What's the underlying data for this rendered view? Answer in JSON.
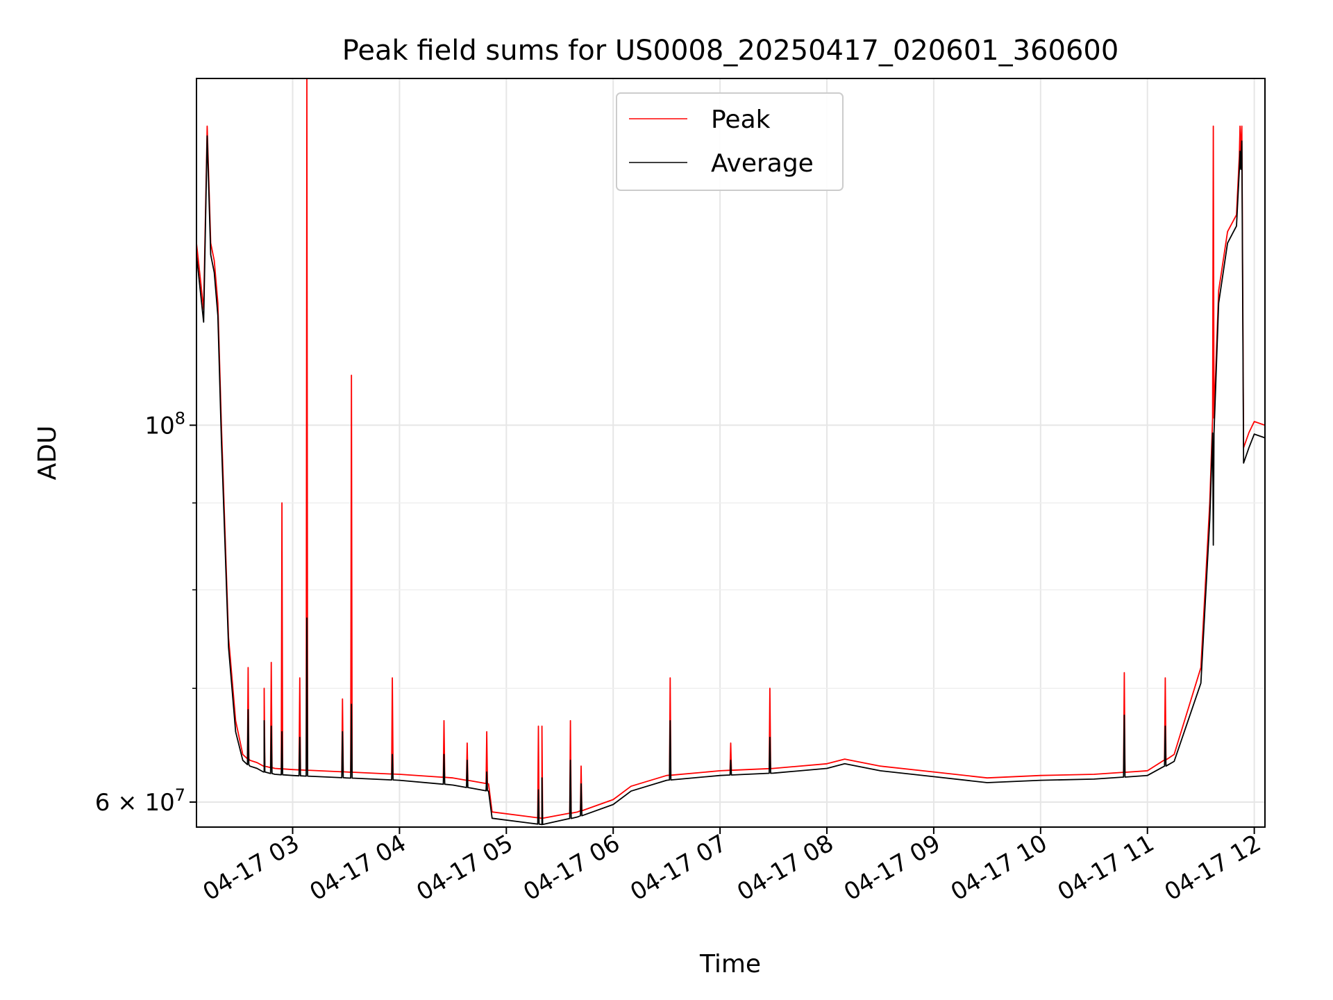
{
  "chart_data": {
    "type": "line",
    "title": "Peak field sums for US0008_20250417_020601_360600",
    "xlabel": "Time",
    "ylabel": "ADU",
    "yscale": "log",
    "grid": true,
    "legend_position": "top-center",
    "xlim": [
      "04-17 02:06",
      "04-17 12:06"
    ],
    "ylim": [
      58000000,
      160000000
    ],
    "x_ticks": [
      "04-17 03",
      "04-17 04",
      "04-17 05",
      "04-17 06",
      "04-17 07",
      "04-17 08",
      "04-17 09",
      "04-17 10",
      "04-17 11",
      "04-17 12"
    ],
    "y_ticks": [
      {
        "value": 60000000,
        "label": "6 × 10^7"
      },
      {
        "value": 100000000,
        "label": "10^8"
      }
    ],
    "x": [
      "04-17 02:06",
      "04-17 02:10",
      "04-17 02:12",
      "04-17 02:14",
      "04-17 02:16",
      "04-17 02:18",
      "04-17 02:20",
      "04-17 02:24",
      "04-17 02:28",
      "04-17 02:32",
      "04-17 02:36",
      "04-17 02:40",
      "04-17 02:44",
      "04-17 02:50",
      "04-17 03:00",
      "04-17 03:30",
      "04-17 04:00",
      "04-17 04:30",
      "04-17 04:50",
      "04-17 04:52",
      "04-17 05:20",
      "04-17 05:40",
      "04-17 06:00",
      "04-17 06:10",
      "04-17 06:30",
      "04-17 07:00",
      "04-17 07:30",
      "04-17 08:00",
      "04-17 08:10",
      "04-17 08:30",
      "04-17 09:00",
      "04-17 09:30",
      "04-17 10:00",
      "04-17 10:30",
      "04-17 11:00",
      "04-17 11:15",
      "04-17 11:30",
      "04-17 11:35",
      "04-17 11:40",
      "04-17 11:45",
      "04-17 11:50",
      "04-17 11:53",
      "04-17 11:54",
      "04-17 11:57",
      "04-17 12:00",
      "04-17 12:06"
    ],
    "series": [
      {
        "name": "Peak",
        "color": "#ff0000",
        "values": [
          128000000,
          117000000,
          150000000,
          128000000,
          125000000,
          118000000,
          100000000,
          75000000,
          67000000,
          64000000,
          63500000,
          63300000,
          63000000,
          62800000,
          62700000,
          62500000,
          62300000,
          62000000,
          61500000,
          59200000,
          58700000,
          59200000,
          60200000,
          61300000,
          62200000,
          62600000,
          62800000,
          63200000,
          63600000,
          63000000,
          62500000,
          62000000,
          62200000,
          62300000,
          62600000,
          64000000,
          72000000,
          90000000,
          120000000,
          130000000,
          133000000,
          150000000,
          97000000,
          99000000,
          100500000,
          100000000
        ]
      },
      {
        "name": "Average",
        "color": "#000000",
        "values": [
          126000000,
          115000000,
          148000000,
          126000000,
          123000000,
          116000000,
          98000000,
          74000000,
          66000000,
          63500000,
          63000000,
          62800000,
          62500000,
          62300000,
          62200000,
          62000000,
          61800000,
          61400000,
          60900000,
          58700000,
          58200000,
          58800000,
          59800000,
          60900000,
          61800000,
          62200000,
          62400000,
          62800000,
          63200000,
          62600000,
          62100000,
          61600000,
          61800000,
          61900000,
          62200000,
          63400000,
          70500000,
          88000000,
          118000000,
          128000000,
          131000000,
          147000000,
          95000000,
          97000000,
          98800000,
          98300000
        ]
      }
    ],
    "spikes": [
      {
        "x": "04-17 02:35",
        "peak": 72000000,
        "average": 68000000
      },
      {
        "x": "04-17 02:44",
        "peak": 70000000,
        "average": 67000000
      },
      {
        "x": "04-17 02:48",
        "peak": 72500000,
        "average": 66500000
      },
      {
        "x": "04-17 02:54",
        "peak": 90000000,
        "average": 66000000
      },
      {
        "x": "04-17 03:04",
        "peak": 71000000,
        "average": 65500000
      },
      {
        "x": "04-17 03:08",
        "peak": 160000000,
        "average": 77000000
      },
      {
        "x": "04-17 03:28",
        "peak": 69000000,
        "average": 66000000
      },
      {
        "x": "04-17 03:33",
        "peak": 107000000,
        "average": 68500000
      },
      {
        "x": "04-17 03:56",
        "peak": 71000000,
        "average": 64000000
      },
      {
        "x": "04-17 04:25",
        "peak": 67000000,
        "average": 64000000
      },
      {
        "x": "04-17 04:38",
        "peak": 65000000,
        "average": 63500000
      },
      {
        "x": "04-17 04:49",
        "peak": 66000000,
        "average": 62500000
      },
      {
        "x": "04-17 05:18",
        "peak": 66500000,
        "average": 61000000
      },
      {
        "x": "04-17 05:20",
        "peak": 66500000,
        "average": 62000000
      },
      {
        "x": "04-17 05:36",
        "peak": 67000000,
        "average": 63500000
      },
      {
        "x": "04-17 05:42",
        "peak": 63000000,
        "average": 61500000
      },
      {
        "x": "04-17 06:32",
        "peak": 71000000,
        "average": 67000000
      },
      {
        "x": "04-17 07:06",
        "peak": 65000000,
        "average": 63500000
      },
      {
        "x": "04-17 07:28",
        "peak": 70000000,
        "average": 65500000
      },
      {
        "x": "04-17 10:47",
        "peak": 71500000,
        "average": 67500000
      },
      {
        "x": "04-17 11:10",
        "peak": 71000000,
        "average": 66500000
      },
      {
        "x": "04-17 11:37",
        "peak": 150000000,
        "average": 85000000
      },
      {
        "x": "04-17 11:52",
        "peak": 150000000,
        "average": 145000000
      }
    ]
  }
}
